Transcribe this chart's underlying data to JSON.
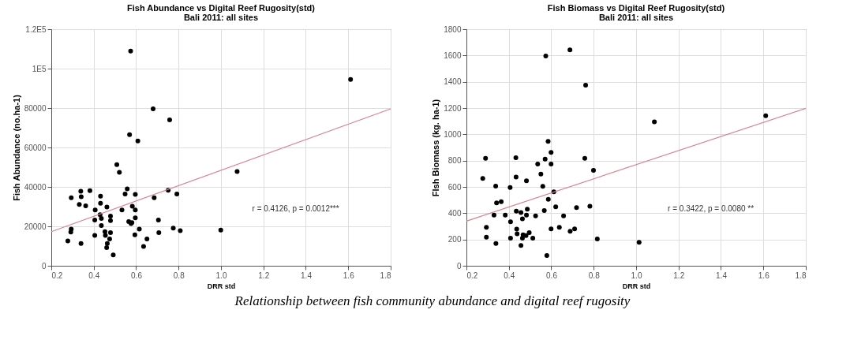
{
  "chart_data": [
    {
      "type": "scatter",
      "title": "Fish Abundance vs Digital Reef Rugosity(std)",
      "subtitle": "Bali 2011: all sites",
      "xlabel": "DRR std",
      "ylabel": "Fish Abundance (no.ha-1)",
      "xlim": [
        0.2,
        1.8
      ],
      "xticks": [
        0.2,
        0.4,
        0.6,
        0.8,
        {
          "value": 1,
          "label": "1.0"
        },
        1.2,
        1.4,
        1.6,
        1.8
      ],
      "ylim": [
        0,
        120000
      ],
      "yticks": [
        0,
        20000,
        40000,
        60000,
        80000,
        {
          "value": 100000,
          "label": "1E5"
        },
        {
          "value": 120000,
          "label": "1.2E5"
        }
      ],
      "grid": true,
      "annotations": [
        "r = 0.4126, p = 0.0012***"
      ],
      "series": [
        {
          "type": "scatter",
          "color": "#000000",
          "marker": "circle",
          "x": [
            0.574,
            0.68,
            0.758,
            0.569,
            0.608,
            0.509,
            0.521,
            0.294,
            0.339,
            0.341,
            0.382,
            0.332,
            0.362,
            0.432,
            0.432,
            0.462,
            0.407,
            0.43,
            0.436,
            0.405,
            0.436,
            0.479,
            0.479,
            0.533,
            0.548,
            0.558,
            0.596,
            0.582,
            0.596,
            0.596,
            0.565,
            0.576,
            0.58,
            0.615,
            0.594,
            0.651,
            0.635,
            0.294,
            0.292,
            0.278,
            0.34,
            0.405,
            0.453,
            0.455,
            0.479,
            0.475,
            0.464,
            0.461,
            0.492,
            0.685,
            0.705,
            0.707,
            0.751,
            0.792,
            0.775,
            0.808,
            0.999,
            1.076,
            1.611
          ],
          "values": [
            108900,
            79600,
            74000,
            66500,
            63300,
            51300,
            47400,
            34500,
            37800,
            35000,
            38100,
            31100,
            30400,
            35300,
            31700,
            29800,
            28300,
            25900,
            24000,
            23200,
            20400,
            25200,
            22900,
            28300,
            36400,
            39000,
            36200,
            30200,
            28300,
            24300,
            22400,
            21400,
            21900,
            18600,
            15700,
            13600,
            9800,
            18600,
            17100,
            12600,
            11300,
            15400,
            17300,
            15400,
            16800,
            13600,
            11300,
            9200,
            5500,
            34500,
            23200,
            16800,
            38300,
            36400,
            19100,
            17800,
            18100,
            47800,
            94500
          ]
        },
        {
          "type": "line",
          "color": "#d9838f",
          "line_style": "solid",
          "marker": "none",
          "x": [
            0.2,
            1.8
          ],
          "values": [
            17300,
            79600
          ]
        }
      ]
    },
    {
      "type": "scatter",
      "title": "Fish Biomass vs Digital Reef Rugosity(std)",
      "subtitle": "Bali 2011: all sites",
      "xlabel": "DRR std",
      "ylabel": "FIsh Biomass (kg. ha-1)",
      "xlim": [
        0.2,
        1.8
      ],
      "xticks": [
        0.2,
        0.4,
        0.6,
        0.8,
        {
          "value": 1,
          "label": "1.0"
        },
        1.2,
        1.4,
        1.6,
        1.8
      ],
      "ylim": [
        0,
        1800
      ],
      "yticks": [
        0,
        200,
        400,
        600,
        800,
        1000,
        1200,
        1400,
        1600,
        1800
      ],
      "grid": true,
      "annotations": [
        "r = 0.3422, p = 0.0080 **",
        "Relationship between fish community abundance and digital reef rugosity"
      ],
      "series": [
        {
          "type": "scatter",
          "color": "#000000",
          "marker": "circle",
          "x": [
            0.688,
            0.574,
            0.762,
            0.585,
            0.599,
            0.599,
            0.571,
            0.536,
            0.551,
            0.56,
            0.758,
            0.799,
            0.29,
            0.433,
            0.434,
            0.277,
            0.338,
            0.406,
            0.483,
            0.342,
            0.364,
            0.612,
            0.586,
            0.33,
            0.383,
            0.435,
            0.457,
            0.487,
            0.483,
            0.464,
            0.526,
            0.567,
            0.621,
            0.658,
            0.719,
            0.782,
            0.294,
            0.294,
            0.408,
            0.437,
            0.439,
            0.467,
            0.481,
            0.464,
            0.496,
            0.513,
            0.408,
            0.339,
            0.457,
            0.599,
            0.638,
            0.689,
            0.71,
            0.817,
            0.579,
            1.086,
            1.611,
            1.014
          ],
          "values": [
            1643,
            1596,
            1374,
            946,
            862,
            774,
            812,
            774,
            697,
            604,
            818,
            726,
            818,
            822,
            675,
            665,
            606,
            596,
            646,
            478,
            487,
            562,
            506,
            386,
            386,
            415,
            405,
            430,
            386,
            357,
            380,
            420,
            449,
            380,
            443,
            453,
            292,
            218,
            334,
            279,
            243,
            235,
            229,
            210,
            252,
            210,
            210,
            170,
            155,
            281,
            292,
            262,
            281,
            204,
            78,
            1095,
            1141,
            178
          ]
        },
        {
          "type": "line",
          "color": "#d9838f",
          "line_style": "solid",
          "marker": "none",
          "x": [
            0.2,
            1.8
          ],
          "values": [
            340,
            1198
          ]
        }
      ]
    }
  ]
}
